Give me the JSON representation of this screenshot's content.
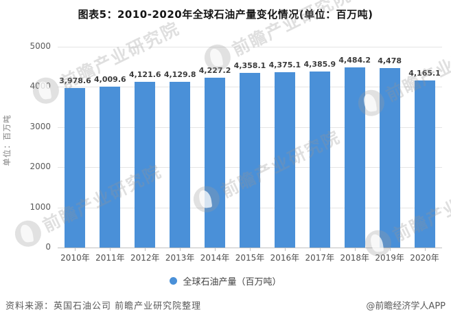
{
  "title": "图表5：2010-2020年全球石油产量变化情况(单位：百万吨)",
  "chart_data": {
    "type": "bar",
    "title": "图表5：2010-2020年全球石油产量变化情况(单位：百万吨)",
    "categories": [
      "2010年",
      "2011年",
      "2012年",
      "2013年",
      "2014年",
      "2015年",
      "2016年",
      "2017年",
      "2018年",
      "2019年",
      "2020年"
    ],
    "values": [
      3978.6,
      4009.6,
      4121.6,
      4129.8,
      4227.2,
      4358.1,
      4375.1,
      4385.9,
      4484.2,
      4478,
      4165.1
    ],
    "value_labels": [
      "3,978.6",
      "4,009.6",
      "4,121.6",
      "4,129.8",
      "4,227.2",
      "4,358.1",
      "4,375.1",
      "4,385.9",
      "4,484.2",
      "4,478",
      "4,165.1"
    ],
    "xlabel": "",
    "ylabel": "单位：百万吨",
    "ylim": [
      0,
      5000
    ],
    "yticks": [
      0,
      1000,
      2000,
      3000,
      4000,
      5000
    ],
    "grid": true,
    "bar_color": "#4a90d8",
    "legend": {
      "label": "全球石油产量（百万吨）",
      "position": "bottom",
      "marker": "circle"
    }
  },
  "footer": {
    "source": "资料来源：英国石油公司 前瞻产业研究院整理",
    "credit": "@前瞻经济学人APP"
  },
  "watermark": {
    "text": "前瞻产业研究院"
  },
  "colors": {
    "bar": "#4a90d8",
    "gridline": "#e4e4e4",
    "axis_line": "#bfbfbf",
    "value_label": "#3a3a3a",
    "tick_label": "#595959"
  }
}
